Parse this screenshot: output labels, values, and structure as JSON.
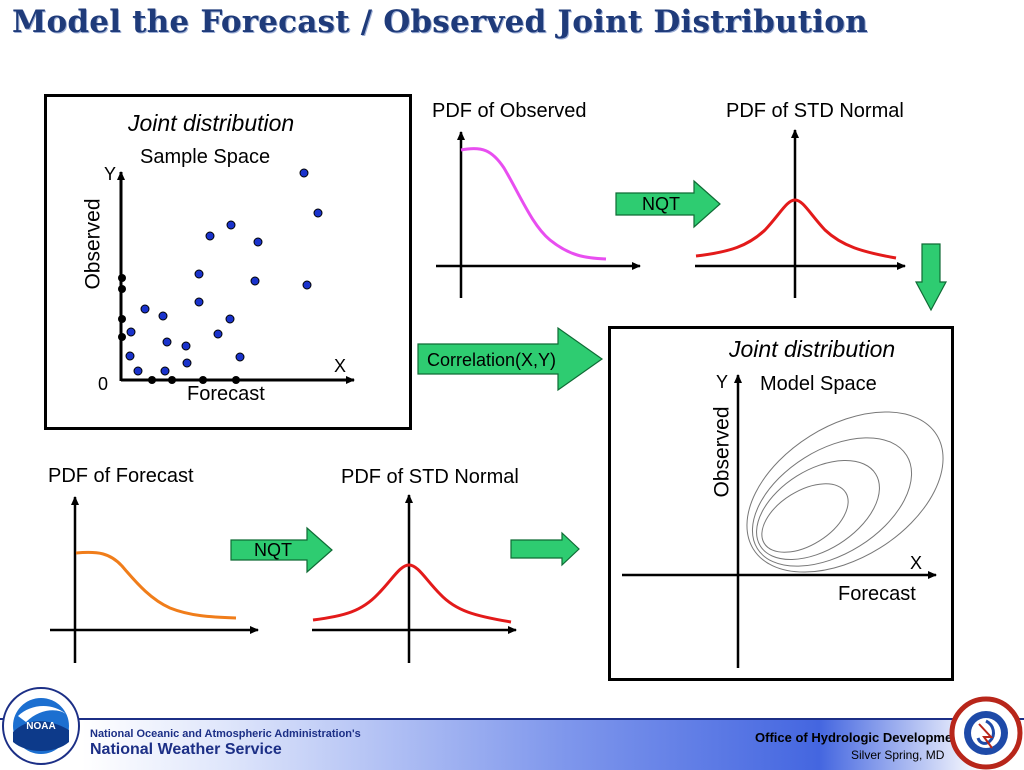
{
  "title": "Model the Forecast / Observed Joint Distribution",
  "sample_box": {
    "heading": "Joint distribution",
    "subheading": "Sample Space",
    "y_axis": "Y",
    "x_axis": "X",
    "origin": "0",
    "y_label": "Observed",
    "x_label": "Forecast"
  },
  "pdf_observed": {
    "label": "PDF of Observed"
  },
  "pdf_std_normal_top": {
    "label": "PDF of STD Normal"
  },
  "nqt_top": {
    "label": "NQT"
  },
  "correlation": {
    "label": "Correlation(X,Y)"
  },
  "model_box": {
    "heading": "Joint distribution",
    "subheading": "Model Space",
    "y_axis": "Y",
    "x_axis": "X",
    "y_label": "Observed",
    "x_label": "Forecast"
  },
  "pdf_forecast": {
    "label": "PDF of Forecast"
  },
  "pdf_std_normal_bottom": {
    "label": "PDF of STD Normal"
  },
  "nqt_bottom": {
    "label": "NQT"
  },
  "footer": {
    "agency_line": "National Oceanic and Atmospheric Administration's",
    "service_line": "National Weather Service",
    "office_line": "Office of Hydrologic Development",
    "location_line": "Silver Spring, MD",
    "noaa_logo_text": "NOAA"
  },
  "colors": {
    "title": "#1f3b7a",
    "arrow_fill": "#2ecc71",
    "dots": "#1a33cc",
    "observed_curve": "#e84ef0",
    "normal_curve": "#e31a1a",
    "forecast_curve": "#f07d1a"
  },
  "icons": [
    "noaa-logo",
    "nws-logo"
  ]
}
